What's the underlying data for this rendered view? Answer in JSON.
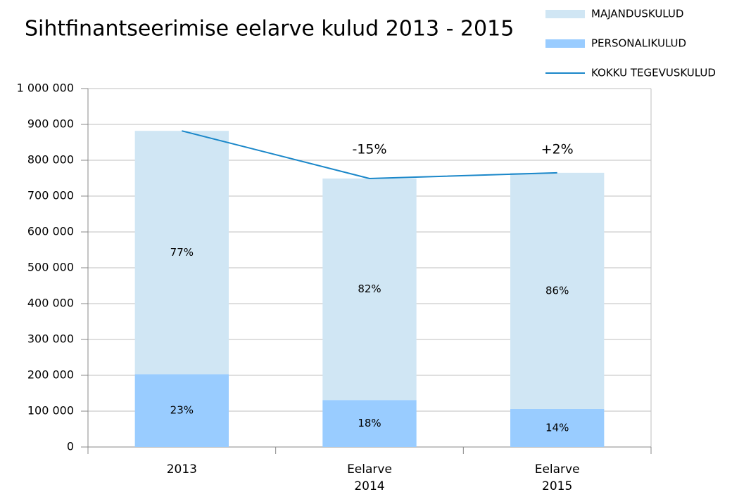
{
  "chart_data": {
    "type": "bar",
    "stacked": true,
    "title": "Sihtfinantseerimise eelarve kulud 2013 - 2015",
    "categories": [
      "2013",
      "Eelarve\n2014",
      "Eelarve\n2015"
    ],
    "series": [
      {
        "name": "PERSONALIKULUD",
        "color": "#99ccff",
        "values": [
          203000,
          131000,
          106000
        ],
        "labels": [
          "23%",
          "18%",
          "14%"
        ]
      },
      {
        "name": "MAJANDUSKULUD",
        "color": "#d0e6f4",
        "values": [
          679000,
          618000,
          659000
        ],
        "labels": [
          "77%",
          "82%",
          "86%"
        ]
      },
      {
        "name": "KOKKU TEGEVUSKULUD",
        "type": "line",
        "color": "#1a87c9",
        "values": [
          882000,
          749000,
          765000
        ]
      }
    ],
    "annotations": [
      null,
      "-15%",
      "+2%"
    ],
    "ylim": [
      0,
      1000000
    ],
    "yticks": [
      0,
      {
        "value": 100000,
        "label": "100 000"
      },
      {
        "value": 200000,
        "label": "200 000"
      },
      {
        "value": 300000,
        "label": "300 000"
      },
      {
        "value": 400000,
        "label": "400 000"
      },
      {
        "value": 500000,
        "label": "500 000"
      },
      {
        "value": 600000,
        "label": "600 000"
      },
      {
        "value": 700000,
        "label": "700 000"
      },
      {
        "value": 800000,
        "label": "800 000"
      },
      {
        "value": 900000,
        "label": "900 000"
      },
      {
        "value": 1000000,
        "label": "1 000 000"
      }
    ],
    "grid": true
  }
}
